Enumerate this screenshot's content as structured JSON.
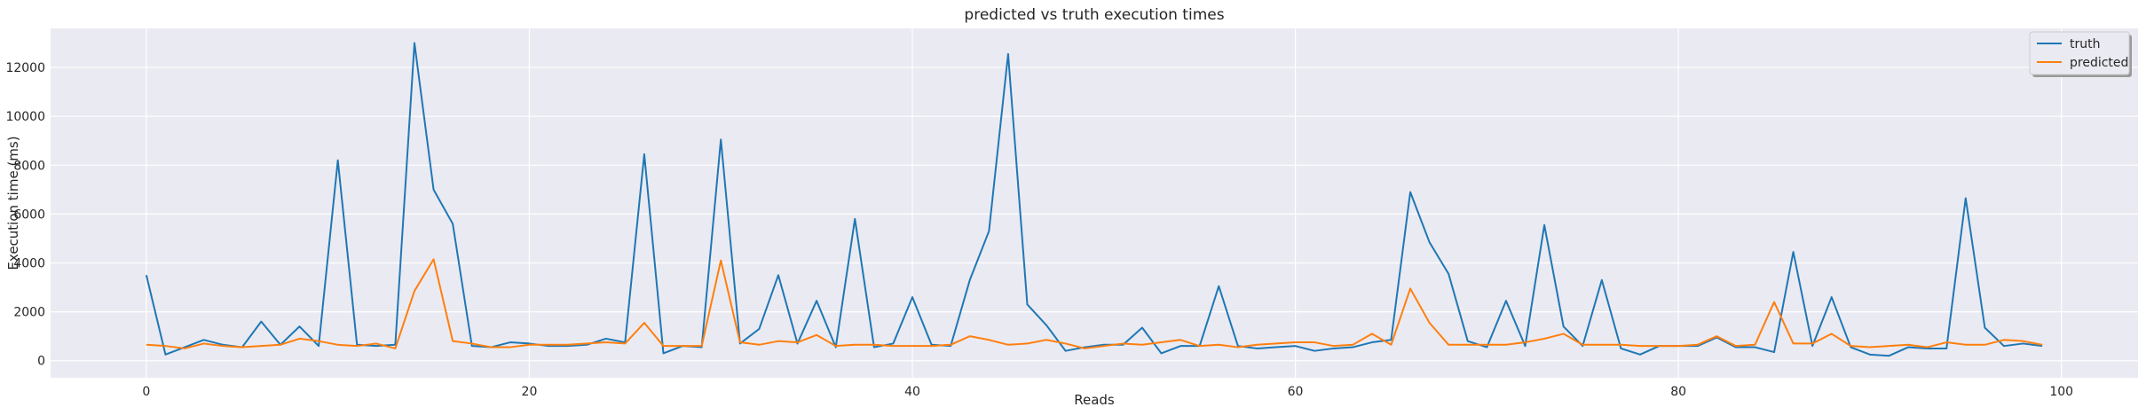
{
  "chart_data": {
    "type": "line",
    "title": "predicted vs truth execution times",
    "xlabel": "Reads",
    "ylabel": "Execution time (ms)",
    "xlim": [
      -5,
      104
    ],
    "ylim": [
      -700,
      13600
    ],
    "xticks": [
      0,
      20,
      40,
      60,
      80,
      100
    ],
    "yticks": [
      0,
      2000,
      4000,
      6000,
      8000,
      10000,
      12000
    ],
    "grid": true,
    "legend_position": "top-right",
    "x": [
      0,
      1,
      2,
      3,
      4,
      5,
      6,
      7,
      8,
      9,
      10,
      11,
      12,
      13,
      14,
      15,
      16,
      17,
      18,
      19,
      20,
      21,
      22,
      23,
      24,
      25,
      26,
      27,
      28,
      29,
      30,
      31,
      32,
      33,
      34,
      35,
      36,
      37,
      38,
      39,
      40,
      41,
      42,
      43,
      44,
      45,
      46,
      47,
      48,
      49,
      50,
      51,
      52,
      53,
      54,
      55,
      56,
      57,
      58,
      59,
      60,
      61,
      62,
      63,
      64,
      65,
      66,
      67,
      68,
      69,
      70,
      71,
      72,
      73,
      74,
      75,
      76,
      77,
      78,
      79,
      80,
      81,
      82,
      83,
      84,
      85,
      86,
      87,
      88,
      89,
      90,
      91,
      92,
      93,
      94,
      95,
      96,
      97,
      98,
      99
    ],
    "series": [
      {
        "name": "truth",
        "color": "#1f77b4",
        "values": [
          3500,
          250,
          550,
          850,
          650,
          550,
          1600,
          650,
          1400,
          600,
          8200,
          650,
          600,
          650,
          13000,
          7000,
          5600,
          600,
          550,
          750,
          700,
          600,
          600,
          650,
          900,
          750,
          8450,
          300,
          600,
          550,
          9050,
          700,
          1300,
          3500,
          700,
          2450,
          550,
          5800,
          550,
          700,
          2600,
          650,
          600,
          3300,
          5300,
          12550,
          2300,
          1450,
          400,
          550,
          650,
          650,
          1350,
          300,
          600,
          600,
          3050,
          600,
          500,
          550,
          600,
          400,
          500,
          550,
          750,
          850,
          6900,
          4850,
          3550,
          800,
          550,
          2450,
          600,
          5550,
          1400,
          600,
          3300,
          500,
          250,
          600,
          600,
          600,
          950,
          550,
          550,
          350,
          4450,
          600,
          2600,
          550,
          250,
          200,
          550,
          500,
          500,
          6650,
          1350,
          600,
          700,
          600
        ]
      },
      {
        "name": "predicted",
        "color": "#ff7f0e",
        "values": [
          650,
          600,
          500,
          700,
          600,
          550,
          600,
          650,
          900,
          800,
          650,
          600,
          700,
          500,
          2850,
          4150,
          800,
          700,
          550,
          550,
          650,
          650,
          650,
          700,
          750,
          700,
          1550,
          600,
          600,
          600,
          4100,
          750,
          650,
          800,
          750,
          1050,
          600,
          650,
          650,
          600,
          600,
          600,
          650,
          1000,
          850,
          650,
          700,
          850,
          700,
          500,
          600,
          700,
          650,
          750,
          850,
          600,
          650,
          550,
          650,
          700,
          750,
          750,
          600,
          650,
          1100,
          650,
          2950,
          1550,
          650,
          650,
          650,
          650,
          750,
          900,
          1100,
          650,
          650,
          650,
          600,
          600,
          600,
          650,
          1000,
          600,
          650,
          2400,
          700,
          700,
          1100,
          600,
          550,
          600,
          650,
          550,
          750,
          650,
          650,
          850,
          800,
          650
        ]
      }
    ]
  }
}
